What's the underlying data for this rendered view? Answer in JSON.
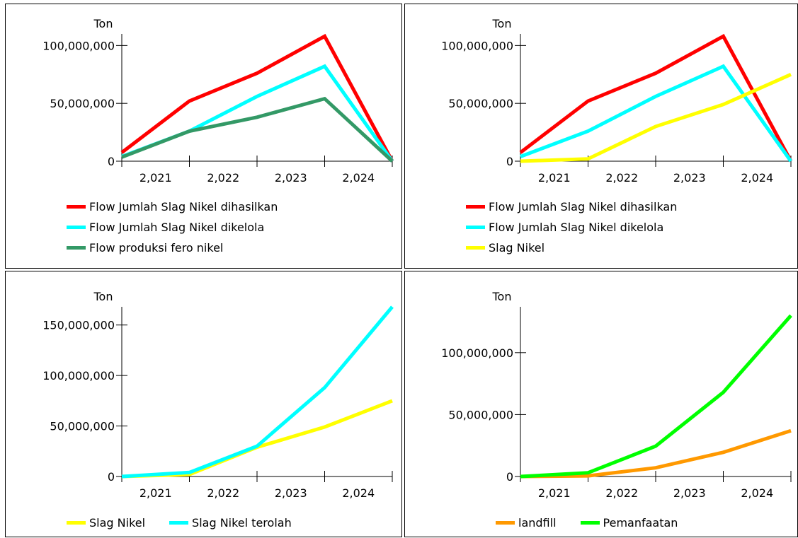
{
  "chart_data": [
    {
      "type": "line",
      "ylabel": "Ton",
      "ylim": [
        0,
        110000000
      ],
      "yticks": [
        0,
        50000000,
        100000000
      ],
      "ytick_labels": [
        "0",
        "50,000,000",
        "100,000,000"
      ],
      "xlim": [
        2020,
        2024
      ],
      "xtick_labels": [
        "2,021",
        "2,022",
        "2,023",
        "2,024"
      ],
      "x": [
        2020,
        2021,
        2022,
        2023,
        2024
      ],
      "legend_layout": "column",
      "series": [
        {
          "name": "Flow Jumlah Slag Nikel dihasilkan",
          "color": "#ff0000",
          "values": [
            7500000,
            52000000,
            76000000,
            108000000,
            0
          ]
        },
        {
          "name": "Flow Jumlah Slag Nikel dikelola",
          "color": "#00ffff",
          "values": [
            4000000,
            26000000,
            56000000,
            82000000,
            0
          ]
        },
        {
          "name": "Flow produksi fero nikel",
          "color": "#339966",
          "values": [
            3500000,
            26000000,
            38000000,
            54000000,
            0
          ]
        }
      ]
    },
    {
      "type": "line",
      "ylabel": "Ton",
      "ylim": [
        0,
        110000000
      ],
      "yticks": [
        0,
        50000000,
        100000000
      ],
      "ytick_labels": [
        "0",
        "50,000,000",
        "100,000,000"
      ],
      "xlim": [
        2020,
        2024
      ],
      "xtick_labels": [
        "2,021",
        "2,022",
        "2,023",
        "2,024"
      ],
      "x": [
        2020,
        2021,
        2022,
        2023,
        2024
      ],
      "legend_layout": "column",
      "series": [
        {
          "name": "Flow Jumlah Slag Nikel dihasilkan",
          "color": "#ff0000",
          "values": [
            7500000,
            52000000,
            76000000,
            108000000,
            0
          ]
        },
        {
          "name": "Flow Jumlah Slag Nikel dikelola",
          "color": "#00ffff",
          "values": [
            4000000,
            26000000,
            56000000,
            82000000,
            0
          ]
        },
        {
          "name": "Slag Nikel",
          "color": "#ffff00",
          "values": [
            0,
            2000000,
            30000000,
            49000000,
            75000000
          ]
        }
      ]
    },
    {
      "type": "line",
      "ylabel": "Ton",
      "ylim": [
        0,
        168000000
      ],
      "yticks": [
        0,
        50000000,
        100000000,
        150000000
      ],
      "ytick_labels": [
        "0",
        "50,000,000",
        "100,000,000",
        "150,000,000"
      ],
      "xlim": [
        2020,
        2024
      ],
      "xtick_labels": [
        "2,021",
        "2,022",
        "2,023",
        "2,024"
      ],
      "x": [
        2020,
        2021,
        2022,
        2023,
        2024
      ],
      "legend_layout": "row",
      "series": [
        {
          "name": "Slag Nikel",
          "color": "#ffff00",
          "values": [
            0,
            2000000,
            29000000,
            49000000,
            75000000
          ]
        },
        {
          "name": "Slag Nikel terolah",
          "color": "#00ffff",
          "values": [
            0,
            4000000,
            30000000,
            88000000,
            168000000
          ]
        }
      ]
    },
    {
      "type": "line",
      "ylabel": "Ton",
      "ylim": [
        0,
        137000000
      ],
      "yticks": [
        0,
        50000000,
        100000000
      ],
      "ytick_labels": [
        "0",
        "50,000,000",
        "100,000,000"
      ],
      "xlim": [
        2020,
        2024
      ],
      "xtick_labels": [
        "2,021",
        "2,022",
        "2,023",
        "2,024"
      ],
      "x": [
        2020,
        2021,
        2022,
        2023,
        2024
      ],
      "legend_layout": "row",
      "series": [
        {
          "name": "landfill",
          "color": "#ff9900",
          "values": [
            0,
            500000,
            7000000,
            19500000,
            37000000
          ]
        },
        {
          "name": "Pemanfaatan",
          "color": "#00ff00",
          "values": [
            0,
            3000000,
            24500000,
            68000000,
            130000000
          ]
        }
      ]
    }
  ]
}
